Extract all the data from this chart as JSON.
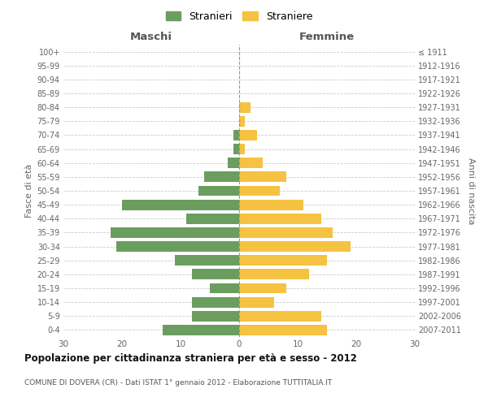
{
  "age_groups": [
    "0-4",
    "5-9",
    "10-14",
    "15-19",
    "20-24",
    "25-29",
    "30-34",
    "35-39",
    "40-44",
    "45-49",
    "50-54",
    "55-59",
    "60-64",
    "65-69",
    "70-74",
    "75-79",
    "80-84",
    "85-89",
    "90-94",
    "95-99",
    "100+"
  ],
  "birth_years": [
    "2007-2011",
    "2002-2006",
    "1997-2001",
    "1992-1996",
    "1987-1991",
    "1982-1986",
    "1977-1981",
    "1972-1976",
    "1967-1971",
    "1962-1966",
    "1957-1961",
    "1952-1956",
    "1947-1951",
    "1942-1946",
    "1937-1941",
    "1932-1936",
    "1927-1931",
    "1922-1926",
    "1917-1921",
    "1912-1916",
    "≤ 1911"
  ],
  "maschi": [
    13,
    8,
    8,
    5,
    8,
    11,
    21,
    22,
    9,
    20,
    7,
    6,
    2,
    1,
    1,
    0,
    0,
    0,
    0,
    0,
    0
  ],
  "femmine": [
    15,
    14,
    6,
    8,
    12,
    15,
    19,
    16,
    14,
    11,
    7,
    8,
    4,
    1,
    3,
    1,
    2,
    0,
    0,
    0,
    0
  ],
  "color_maschi": "#6b9e5e",
  "color_femmine": "#f5c242",
  "title": "Popolazione per cittadinanza straniera per età e sesso - 2012",
  "subtitle": "COMUNE DI DOVERA (CR) - Dati ISTAT 1° gennaio 2012 - Elaborazione TUTTITALIA.IT",
  "xlabel_left": "Maschi",
  "xlabel_right": "Femmine",
  "ylabel_left": "Fasce di età",
  "ylabel_right": "Anni di nascita",
  "legend_maschi": "Stranieri",
  "legend_femmine": "Straniere",
  "xlim": 30,
  "background_color": "#ffffff",
  "grid_color": "#cccccc",
  "bar_height": 0.75
}
